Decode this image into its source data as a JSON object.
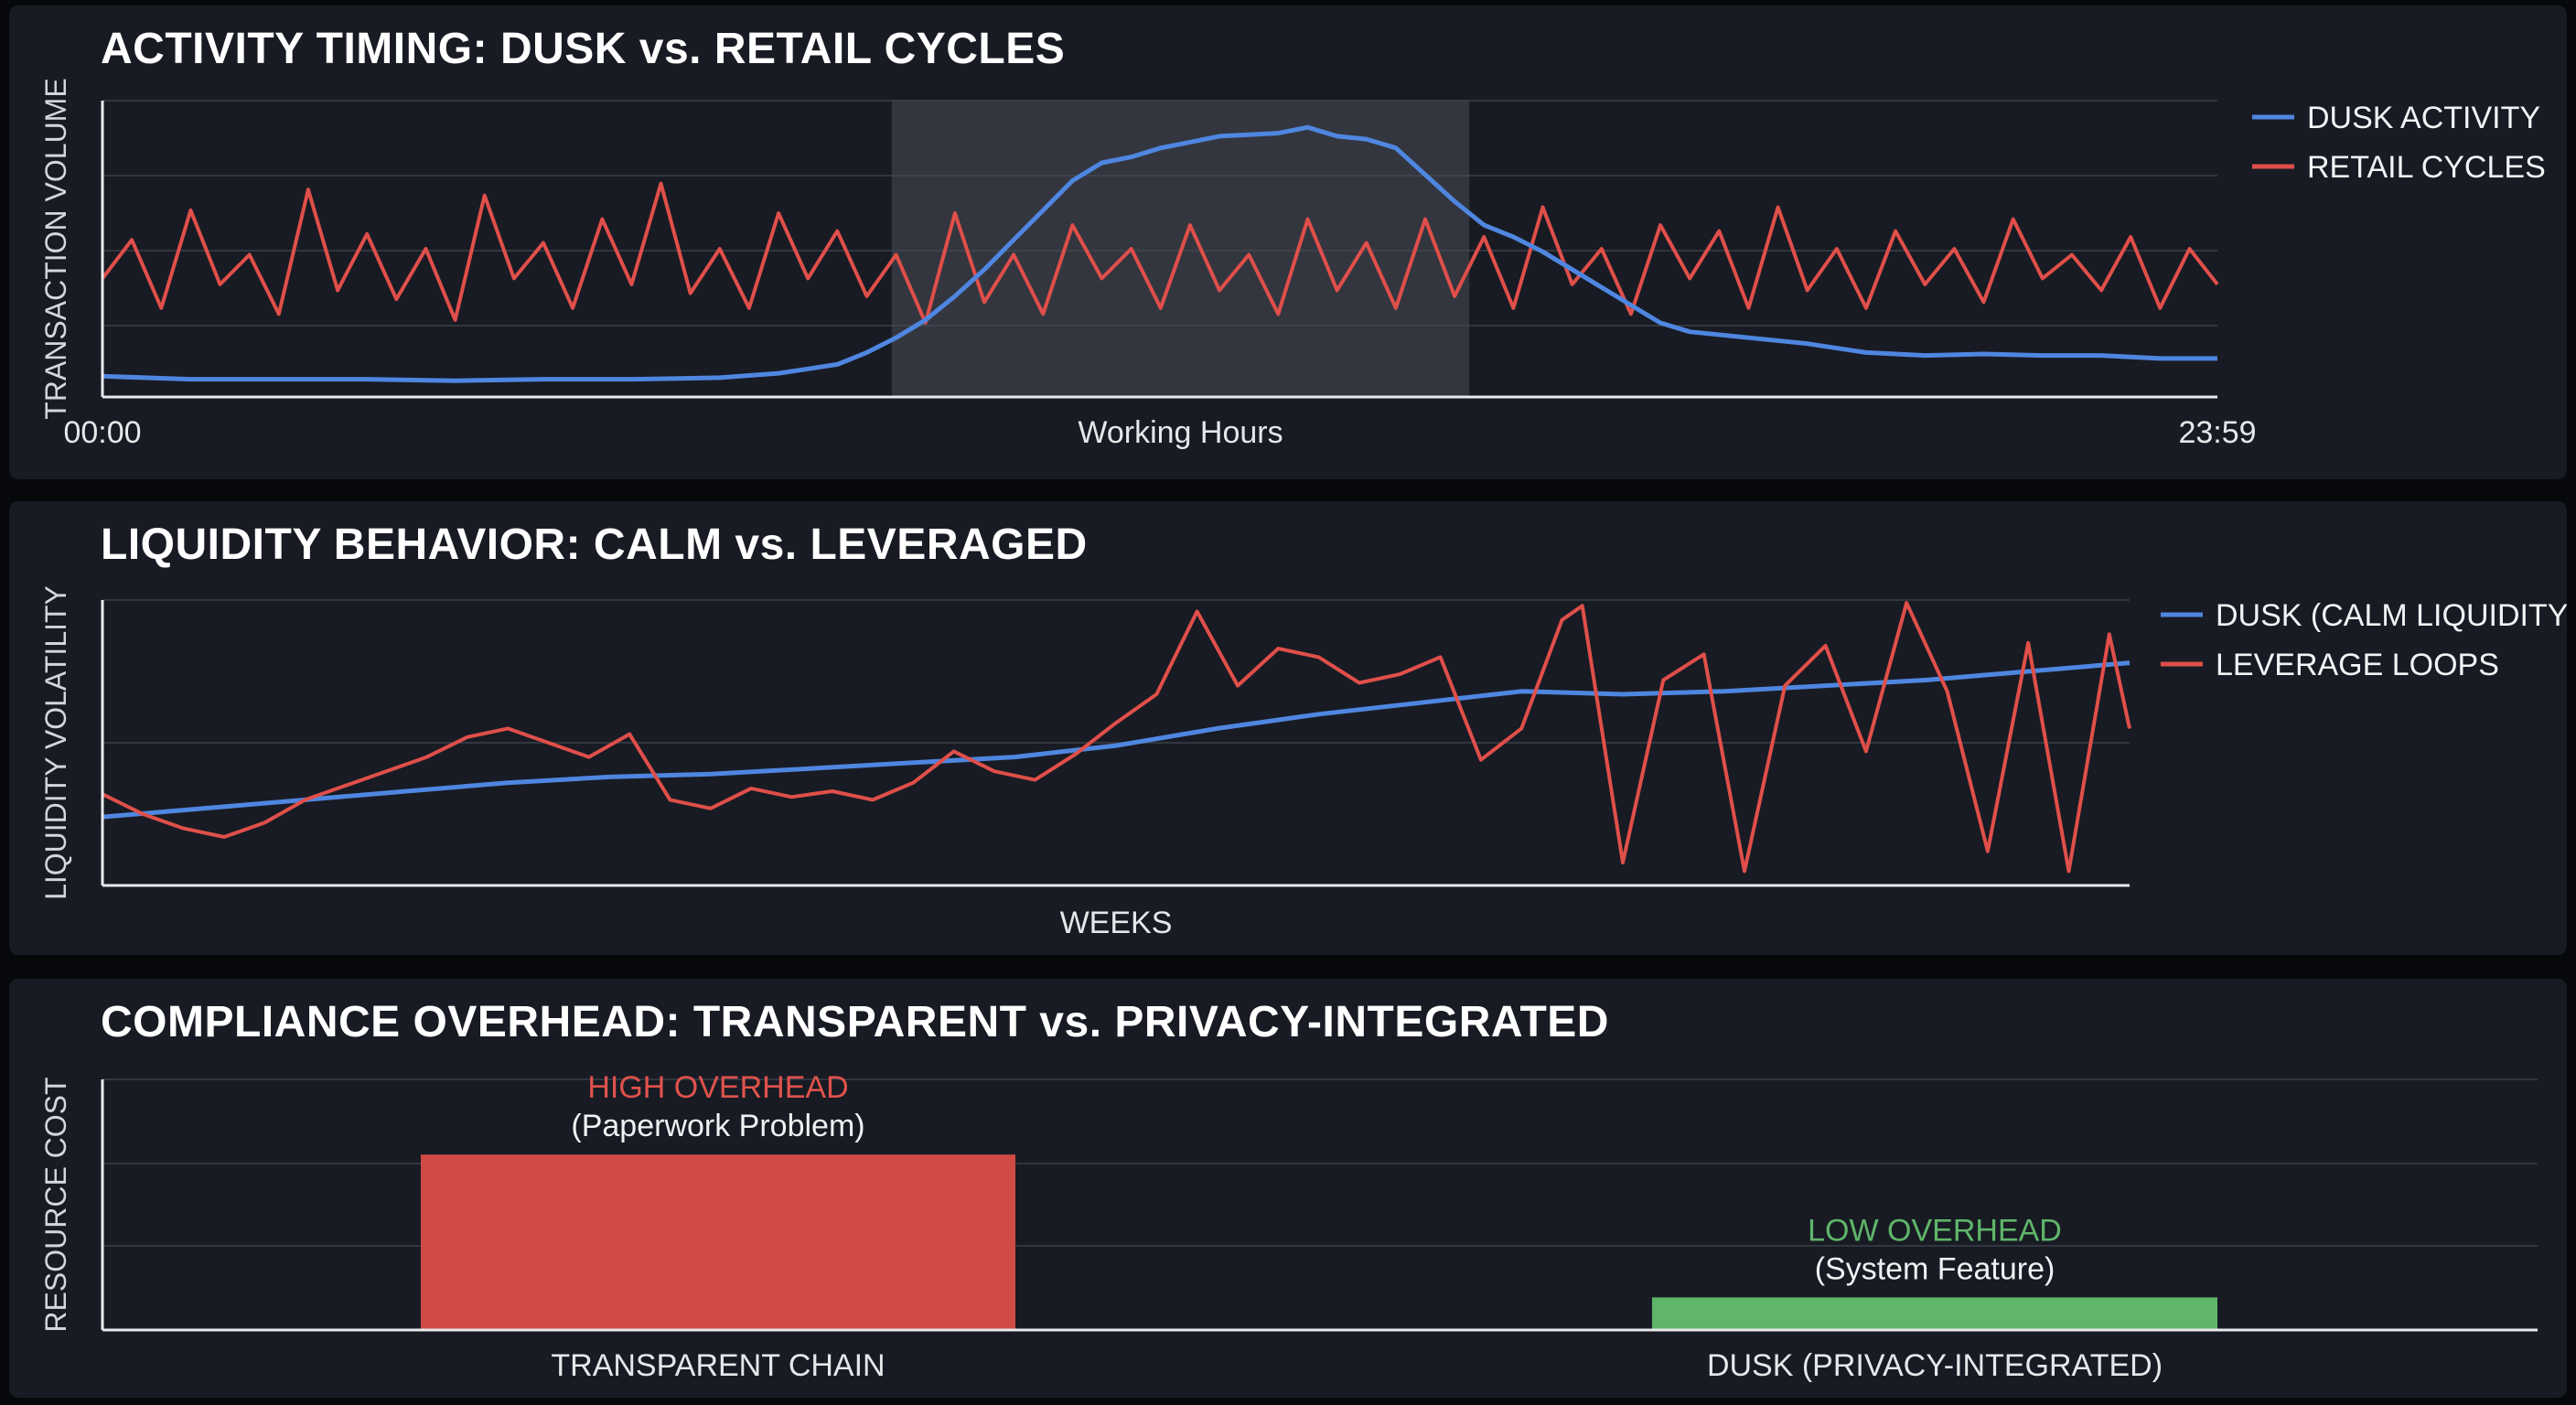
{
  "colors": {
    "background": "#07080b",
    "panel": "#181b23",
    "grid": "#3b3f48",
    "axis": "#e8e9ec",
    "dusk": "#4f86e0",
    "retail": "#e04f4a",
    "high_overhead_bar": "#d04b45",
    "high_overhead_text": "#e0524c",
    "low_overhead": "#5fb56a",
    "working_hours_band": "#4a4d55"
  },
  "chart_data": [
    {
      "type": "line",
      "title": "ACTIVITY TIMING: DUSK vs. RETAIL CYCLES",
      "ylabel": "TRANSACTION VOLUME",
      "xlim": [
        0,
        1439
      ],
      "ylim": [
        0,
        100
      ],
      "x_ticks": [
        "00:00",
        "23:59"
      ],
      "x_tick_values": [
        0,
        1439
      ],
      "band": {
        "label": "Working Hours",
        "x_start": 537,
        "x_end": 930
      },
      "grid": true,
      "legend": "top-right",
      "series": [
        {
          "name": "DUSK ACTIVITY",
          "color": "#4f86e0",
          "x": [
            0,
            60,
            120,
            180,
            240,
            300,
            360,
            420,
            460,
            500,
            520,
            540,
            560,
            580,
            600,
            620,
            640,
            660,
            680,
            700,
            720,
            740,
            760,
            780,
            800,
            820,
            840,
            860,
            880,
            900,
            920,
            940,
            960,
            980,
            1000,
            1020,
            1040,
            1060,
            1080,
            1120,
            1160,
            1200,
            1240,
            1280,
            1320,
            1360,
            1400,
            1439
          ],
          "y": [
            7,
            6,
            6,
            6,
            5.5,
            6,
            6,
            6.5,
            8,
            11,
            15,
            20,
            26,
            34,
            43,
            53,
            63,
            73,
            79,
            81,
            84,
            86,
            88,
            88.5,
            89,
            91,
            88,
            87,
            84,
            75,
            66,
            58,
            54,
            49,
            43,
            37,
            31,
            25,
            22,
            20,
            18,
            15,
            14,
            14.5,
            14,
            14,
            13,
            13
          ]
        },
        {
          "name": "RETAIL CYCLES",
          "color": "#e04f4a",
          "x": [
            0,
            20,
            40,
            60,
            80,
            100,
            120,
            140,
            160,
            180,
            200,
            220,
            240,
            260,
            280,
            300,
            320,
            340,
            360,
            380,
            400,
            420,
            440,
            460,
            480,
            500,
            520,
            540,
            560,
            580,
            600,
            620,
            640,
            660,
            680,
            700,
            720,
            740,
            760,
            780,
            800,
            820,
            840,
            860,
            880,
            900,
            920,
            940,
            960,
            980,
            1000,
            1020,
            1040,
            1060,
            1080,
            1100,
            1120,
            1140,
            1160,
            1180,
            1200,
            1220,
            1240,
            1260,
            1280,
            1300,
            1320,
            1340,
            1360,
            1380,
            1400,
            1420,
            1439
          ],
          "y": [
            40,
            53,
            30,
            63,
            38,
            48,
            28,
            70,
            36,
            55,
            33,
            50,
            26,
            68,
            40,
            52,
            30,
            60,
            38,
            72,
            35,
            50,
            30,
            62,
            40,
            56,
            34,
            48,
            25,
            62,
            32,
            48,
            28,
            58,
            40,
            50,
            30,
            58,
            36,
            48,
            28,
            60,
            36,
            52,
            30,
            60,
            34,
            54,
            30,
            64,
            38,
            50,
            28,
            58,
            40,
            56,
            30,
            64,
            36,
            50,
            30,
            56,
            38,
            50,
            32,
            60,
            40,
            48,
            36,
            54,
            30,
            50,
            38
          ]
        }
      ]
    },
    {
      "type": "line",
      "title": "LIQUIDITY BEHAVIOR: CALM vs. LEVERAGED",
      "ylabel": "LIQUIDITY VOLATILITY",
      "xlabel": "WEEKS",
      "xlim": [
        0,
        100
      ],
      "ylim": [
        0,
        100
      ],
      "grid": true,
      "legend": "top-right",
      "series": [
        {
          "name": "DUSK (CALM LIQUIDITY)",
          "color": "#4f86e0",
          "x": [
            0,
            5,
            10,
            15,
            20,
            25,
            30,
            35,
            40,
            45,
            50,
            55,
            60,
            65,
            70,
            75,
            80,
            85,
            90,
            95,
            100
          ],
          "y": [
            24,
            27,
            30,
            33,
            36,
            38,
            39,
            41,
            43,
            45,
            49,
            55,
            60,
            64,
            68,
            67,
            68,
            70,
            72,
            75,
            78
          ]
        },
        {
          "name": "LEVERAGE LOOPS",
          "color": "#e04f4a",
          "x": [
            0,
            2,
            4,
            6,
            8,
            10,
            12,
            14,
            16,
            18,
            20,
            22,
            24,
            26,
            28,
            30,
            32,
            34,
            36,
            38,
            40,
            42,
            44,
            46,
            48,
            50,
            52,
            54,
            56,
            58,
            60,
            62,
            64,
            66,
            68,
            70,
            72,
            73,
            75,
            77,
            79,
            81,
            83,
            85,
            87,
            89,
            91,
            93,
            95,
            97,
            99,
            100
          ],
          "y": [
            32,
            25,
            20,
            17,
            22,
            30,
            35,
            40,
            45,
            52,
            55,
            50,
            45,
            53,
            30,
            27,
            34,
            31,
            33,
            30,
            36,
            47,
            40,
            37,
            46,
            57,
            67,
            96,
            70,
            83,
            80,
            71,
            74,
            80,
            44,
            55,
            93,
            98,
            8,
            72,
            81,
            5,
            70,
            84,
            47,
            99,
            68,
            12,
            85,
            5,
            88,
            55
          ]
        }
      ]
    },
    {
      "type": "bar",
      "title": "COMPLIANCE OVERHEAD: TRANSPARENT vs. PRIVACY-INTEGRATED",
      "ylabel": "RESOURCE COST",
      "ylim": [
        0,
        100
      ],
      "grid": true,
      "categories": [
        "TRANSPARENT CHAIN",
        "DUSK (PRIVACY-INTEGRATED)"
      ],
      "values": [
        70,
        13
      ],
      "bar_colors": [
        "#d04b45",
        "#5fb56a"
      ],
      "annotations": [
        {
          "label": "HIGH OVERHEAD",
          "note": "(Paperwork Problem)",
          "color": "#e0524c"
        },
        {
          "label": "LOW OVERHEAD",
          "note": "(System Feature)",
          "color": "#5fb56a"
        }
      ]
    }
  ]
}
